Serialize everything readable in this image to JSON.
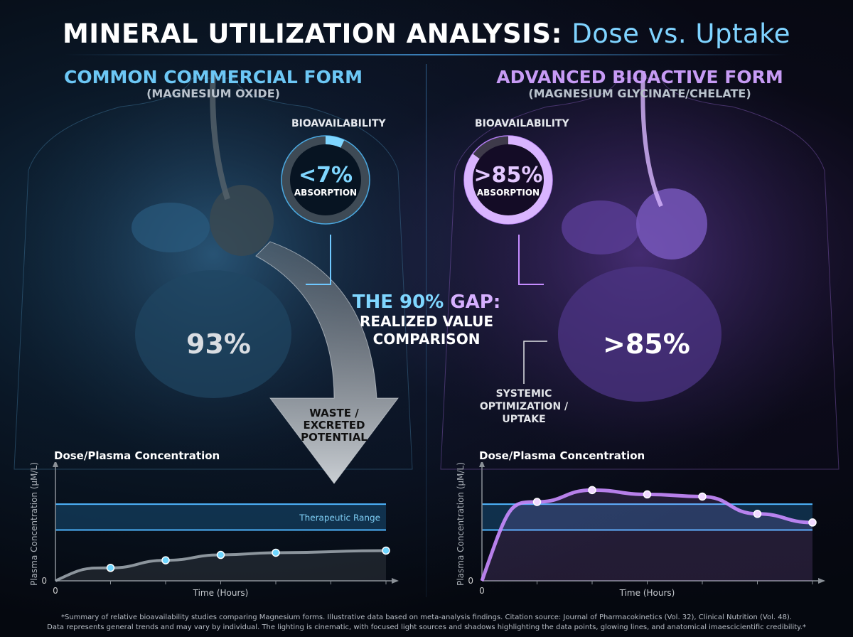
{
  "title": {
    "bold": "MINERAL UTILIZATION ANALYSIS:",
    "light": "Dose vs. Uptake"
  },
  "left": {
    "heading": "COMMON COMMERCIAL FORM",
    "subheading": "(MAGNESIUM OXIDE)",
    "bio_label": "BIOAVAILABILITY",
    "bio_value": "<7%",
    "bio_caption": "ABSORPTION",
    "bio_fraction": 0.07,
    "wasted_pct": "93%",
    "waste_label": [
      "WASTE /",
      "EXCRETED",
      "POTENTIAL"
    ],
    "accent": "#5ec8ff"
  },
  "right": {
    "heading": "ADVANCED BIOACTIVE FORM",
    "subheading": "(MAGNESIUM GLYCINATE/CHELATE)",
    "bio_label": "BIOAVAILABILITY",
    "bio_value": ">85%",
    "bio_caption": "ABSORPTION",
    "bio_fraction": 0.85,
    "absorbed_pct": ">85%",
    "systemic_label": [
      "SYSTEMIC",
      "OPTIMIZATION /",
      "UPTAKE"
    ],
    "accent": "#c58cff"
  },
  "center": {
    "gap_a": "THE 90%",
    "gap_b": "GAP:",
    "line2": "REALIZED VALUE",
    "line3": "COMPARISON"
  },
  "chart_data": [
    {
      "type": "line",
      "title": "Dose/Plasma Concentration",
      "xlabel": "Time (Hours)",
      "ylabel": "Plasma Concentration (μM/L)",
      "x_origin_label": "0",
      "y_origin_label": "0",
      "band": {
        "label": "Therapeutic Range",
        "range": [
          47,
          71
        ]
      },
      "x": [
        1,
        2,
        3,
        4,
        6
      ],
      "values": [
        12,
        19,
        24,
        26,
        28
      ],
      "ylim": [
        0,
        100
      ],
      "xlim": [
        0,
        6
      ],
      "color": "#9aa3ab",
      "point_color": "#6fd6ff"
    },
    {
      "type": "line",
      "title": "Dose/Plasma Concentration",
      "xlabel": "Time (Hours)",
      "ylabel": "Plasma Concentration (μM/L)",
      "x_origin_label": "0",
      "y_origin_label": "0",
      "band": {
        "label": "",
        "range": [
          47,
          71
        ]
      },
      "x": [
        1,
        2,
        3,
        4,
        5,
        6
      ],
      "values": [
        73,
        84,
        80,
        78,
        62,
        54
      ],
      "ylim": [
        0,
        100
      ],
      "xlim": [
        0,
        6
      ],
      "color": "#c98cff",
      "point_color": "#f0d8ff"
    }
  ],
  "footer": [
    "*Summary of relative bioavailability studies comparing Magnesium forms. Illustrative data based on meta-analysis findings. Citation source: Journal of Pharmacokinetics (Vol. 32), Clinical Nutrition (Vol. 48).",
    "Data represents general trends and may vary by individual. The lighting is cinematic, with focused light sources and shadows highlighting the data points, glowing lines, and anatomical imaescicientific credibility.*"
  ]
}
